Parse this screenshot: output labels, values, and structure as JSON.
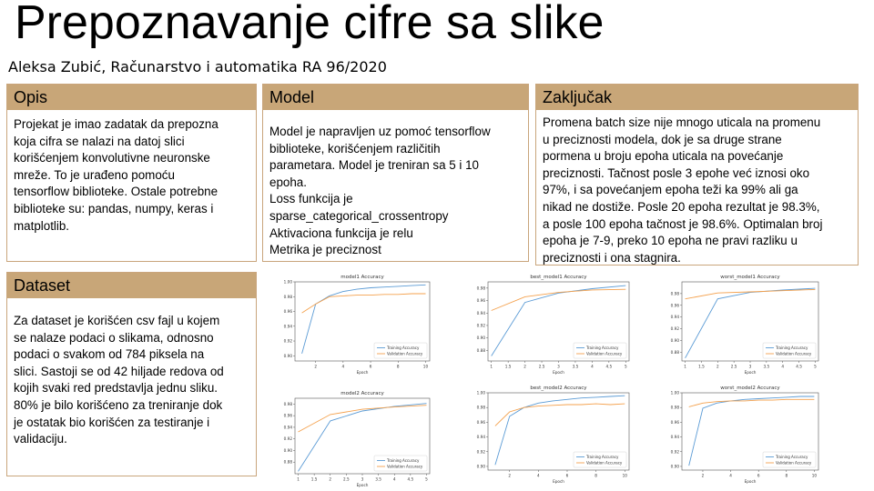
{
  "slide": {
    "title": "Prepoznavanje cifre sa slike",
    "author": "Aleksa Zubić, Računarstvo i automatika RA 96/2020"
  },
  "cards": {
    "opis": {
      "title": "Opis",
      "text": "Projekat je imao zadatak da prepozna\nkoja cifra se nalazi na datoj slici\nkorišćenjem konvolutivne neuronske\nmreže. To je urađeno pomoću\ntensorflow biblioteke. Ostale potrebne\nbiblioteke su: pandas, numpy, keras i\nmatplotlib."
    },
    "model": {
      "title": "Model",
      "text": "Model je napravljen uz pomoć tensorflow\nbiblioteke, korišćenjem različitih\nparametara. Model je treniran sa 5 i 10\nepoha.\nLoss funkcija je\nsparse_categorical_crossentropy\nAktivaciona funkcija je relu\nMetrika je preciznost"
    },
    "zakljucak": {
      "title": "Zaključak",
      "text": "Promena batch size nije mnogo uticala na promenu\nu preciznosti modela, dok je sa druge strane\npormena u broju epoha uticala na povećanje\npreciznosti. Tačnost posle 3 epohe već iznosi oko\n97%, i sa povećanjem epoha teži ka 99% ali ga\nnikad ne dostiže. Posle 20 epoha rezultat je 98.3%,\na posle 100 epoha tačnost je 98.6%. Optimalan broj\nepoha je 7-9, preko 10 epoha ne pravi razliku u\npreciznosti i ona stagnira."
    },
    "dataset": {
      "title": "Dataset",
      "text": "Za dataset je korišćen csv fajl u kojem\nse nalaze podaci o slikama, odnosno\npodaci o svakom od 784 piksela na\nslici. Sastoji se od 42 hiljade redova od\nkojih svaki red predstavlja jednu sliku.\n80% je bilo korišćeno za treniranje dok\nje ostatak bio korišćen za testiranje i\nvalidaciju."
    }
  },
  "colors": {
    "header_bg": "#c8a678",
    "card_border": "#c9a57c",
    "training": "#5b9bd5",
    "validation": "#f4a14d"
  },
  "chart_data": [
    {
      "type": "line",
      "title": "model1 Accuracy",
      "xlabel": "Epoch",
      "ylabel": "",
      "xlim": [
        0.5,
        10.3
      ],
      "ylim": [
        0.893,
        1.0
      ],
      "xticks": [
        2,
        4,
        6,
        8,
        10
      ],
      "yticks": [
        0.9,
        0.92,
        0.94,
        0.96,
        0.98,
        1.0
      ],
      "ytick_labels": [
        "0.90",
        "0.92",
        "0.94",
        "0.96",
        "0.98",
        "1.00"
      ],
      "legend": "bottom-right",
      "grid": false,
      "series": [
        {
          "name": "Training Accuracy",
          "x": [
            1,
            2,
            3,
            4,
            5,
            6,
            7,
            8,
            9,
            10
          ],
          "values": [
            0.903,
            0.97,
            0.981,
            0.987,
            0.99,
            0.992,
            0.993,
            0.994,
            0.995,
            0.996
          ]
        },
        {
          "name": "Validation Accuracy",
          "x": [
            1,
            2,
            3,
            4,
            5,
            6,
            7,
            8,
            9,
            10
          ],
          "values": [
            0.958,
            0.97,
            0.98,
            0.981,
            0.982,
            0.982,
            0.983,
            0.983,
            0.984,
            0.984
          ]
        }
      ]
    },
    {
      "type": "line",
      "title": "best_model1 Accuracy",
      "xlabel": "Epoch",
      "ylabel": "",
      "xlim": [
        0.9,
        5.1
      ],
      "ylim": [
        0.863,
        0.99
      ],
      "xticks": [
        1.0,
        1.5,
        2.0,
        2.5,
        3.0,
        3.5,
        4.0,
        4.5,
        5.0
      ],
      "yticks": [
        0.88,
        0.9,
        0.92,
        0.94,
        0.96,
        0.98
      ],
      "ytick_labels": [
        "0.88",
        "0.90",
        "0.92",
        "0.94",
        "0.96",
        "0.98"
      ],
      "legend": "bottom-right",
      "grid": false,
      "series": [
        {
          "name": "Training Accuracy",
          "x": [
            1,
            2,
            3,
            4,
            5
          ],
          "values": [
            0.871,
            0.957,
            0.972,
            0.979,
            0.984
          ]
        },
        {
          "name": "Validation Accuracy",
          "x": [
            1,
            2,
            3,
            4,
            5
          ],
          "values": [
            0.944,
            0.966,
            0.973,
            0.977,
            0.978
          ]
        }
      ]
    },
    {
      "type": "line",
      "title": "worst_model1 Accuracy",
      "xlabel": "Epoch",
      "ylabel": "",
      "xlim": [
        0.9,
        5.1
      ],
      "ylim": [
        0.865,
        1.0
      ],
      "xticks": [
        1.0,
        1.5,
        2.0,
        2.5,
        3.0,
        3.5,
        4.0,
        4.5,
        5.0
      ],
      "yticks": [
        0.88,
        0.9,
        0.92,
        0.94,
        0.96,
        0.98
      ],
      "ytick_labels": [
        "0.88",
        "0.90",
        "0.92",
        "0.94",
        "0.96",
        "0.98"
      ],
      "legend": "bottom-right",
      "grid": false,
      "series": [
        {
          "name": "Training Accuracy",
          "x": [
            1,
            2,
            3,
            4,
            5
          ],
          "values": [
            0.87,
            0.971,
            0.982,
            0.986,
            0.989
          ]
        },
        {
          "name": "Validation Accuracy",
          "x": [
            1,
            2,
            3,
            4,
            5
          ],
          "values": [
            0.971,
            0.981,
            0.983,
            0.985,
            0.987
          ]
        }
      ]
    },
    {
      "type": "line",
      "title": "model2 Accuracy",
      "xlabel": "Epoch",
      "ylabel": "",
      "xlim": [
        0.9,
        5.1
      ],
      "ylim": [
        0.86,
        0.99
      ],
      "xticks": [
        1.0,
        1.5,
        2.0,
        2.5,
        3.0,
        3.5,
        4.0,
        4.5,
        5.0
      ],
      "yticks": [
        0.88,
        0.9,
        0.92,
        0.94,
        0.96,
        0.98
      ],
      "ytick_labels": [
        "0.88",
        "0.90",
        "0.92",
        "0.94",
        "0.96",
        "0.98"
      ],
      "legend": "bottom-right",
      "grid": false,
      "series": [
        {
          "name": "Training Accuracy",
          "x": [
            1,
            2,
            3,
            4,
            5
          ],
          "values": [
            0.864,
            0.951,
            0.968,
            0.976,
            0.981
          ]
        },
        {
          "name": "Validation Accuracy",
          "x": [
            1,
            2,
            3,
            4,
            5
          ],
          "values": [
            0.932,
            0.962,
            0.971,
            0.975,
            0.978
          ]
        }
      ]
    },
    {
      "type": "line",
      "title": "best_model2 Accuracy",
      "xlabel": "Epoch",
      "ylabel": "",
      "xlim": [
        0.5,
        10.3
      ],
      "ylim": [
        0.895,
        1.0
      ],
      "xticks": [
        2,
        4,
        6,
        8,
        10
      ],
      "yticks": [
        0.9,
        0.92,
        0.94,
        0.96,
        0.98,
        1.0
      ],
      "ytick_labels": [
        "0.90",
        "0.92",
        "0.94",
        "0.96",
        "0.98",
        "1.00"
      ],
      "legend": "bottom-right",
      "grid": false,
      "series": [
        {
          "name": "Training Accuracy",
          "x": [
            1,
            2,
            3,
            4,
            5,
            6,
            7,
            8,
            9,
            10
          ],
          "values": [
            0.902,
            0.968,
            0.98,
            0.986,
            0.989,
            0.991,
            0.993,
            0.994,
            0.995,
            0.996
          ]
        },
        {
          "name": "Validation Accuracy",
          "x": [
            1,
            2,
            3,
            4,
            5,
            6,
            7,
            8,
            9,
            10
          ],
          "values": [
            0.955,
            0.974,
            0.98,
            0.982,
            0.983,
            0.984,
            0.984,
            0.985,
            0.984,
            0.985
          ]
        }
      ]
    },
    {
      "type": "line",
      "title": "worst_model2 Accuracy",
      "xlabel": "Epoch",
      "ylabel": "",
      "xlim": [
        0.5,
        10.3
      ],
      "ylim": [
        0.895,
        1.0
      ],
      "xticks": [
        2,
        4,
        6,
        8,
        10
      ],
      "yticks": [
        0.9,
        0.92,
        0.94,
        0.96,
        0.98,
        1.0
      ],
      "ytick_labels": [
        "0.90",
        "0.92",
        "0.94",
        "0.96",
        "0.98",
        "1.00"
      ],
      "legend": "bottom-right",
      "grid": false,
      "series": [
        {
          "name": "Training Accuracy",
          "x": [
            1,
            2,
            3,
            4,
            5,
            6,
            7,
            8,
            9,
            10
          ],
          "values": [
            0.901,
            0.979,
            0.986,
            0.989,
            0.991,
            0.992,
            0.993,
            0.994,
            0.995,
            0.995
          ]
        },
        {
          "name": "Validation Accuracy",
          "x": [
            1,
            2,
            3,
            4,
            5,
            6,
            7,
            8,
            9,
            10
          ],
          "values": [
            0.981,
            0.986,
            0.988,
            0.989,
            0.989,
            0.99,
            0.99,
            0.991,
            0.991,
            0.991
          ]
        }
      ]
    }
  ]
}
